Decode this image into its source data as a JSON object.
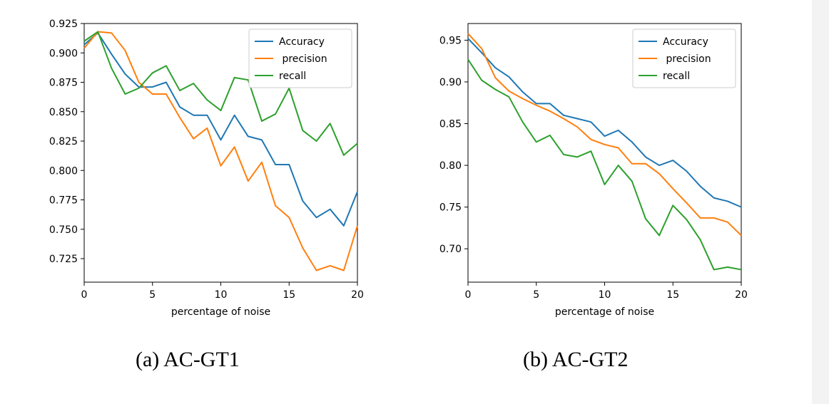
{
  "colors": {
    "accuracy": "#1f77b4",
    "precision": "#ff7f0e",
    "recall": "#2ca02c"
  },
  "chart_data": [
    {
      "type": "line",
      "caption": "(a) AC-GT1",
      "xlabel": "percentage of noise",
      "ylabel": "",
      "xlim": [
        0,
        20
      ],
      "ylim": [
        0.705,
        0.925
      ],
      "xticks": [
        0,
        5,
        10,
        15,
        20
      ],
      "yticks": [
        0.725,
        0.75,
        0.775,
        0.8,
        0.825,
        0.85,
        0.875,
        0.9,
        0.925
      ],
      "ytick_labels": [
        "0.725",
        "0.750",
        "0.775",
        "0.800",
        "0.825",
        "0.850",
        "0.875",
        "0.900",
        "0.925"
      ],
      "legend_position": "top-right",
      "x": [
        0,
        1,
        2,
        3,
        4,
        5,
        6,
        7,
        8,
        9,
        10,
        11,
        12,
        13,
        14,
        15,
        16,
        17,
        18,
        19,
        20
      ],
      "series": [
        {
          "name": "Accuracy",
          "color": "#1f77b4",
          "values": [
            0.907,
            0.917,
            0.899,
            0.882,
            0.871,
            0.871,
            0.875,
            0.854,
            0.847,
            0.847,
            0.826,
            0.847,
            0.829,
            0.826,
            0.805,
            0.805,
            0.774,
            0.76,
            0.767,
            0.753,
            0.782
          ]
        },
        {
          "name": " precision",
          "color": "#ff7f0e",
          "values": [
            0.904,
            0.918,
            0.917,
            0.902,
            0.875,
            0.865,
            0.865,
            0.845,
            0.827,
            0.836,
            0.804,
            0.82,
            0.791,
            0.807,
            0.77,
            0.76,
            0.734,
            0.715,
            0.719,
            0.715,
            0.753
          ]
        },
        {
          "name": "recall",
          "color": "#2ca02c",
          "values": [
            0.91,
            0.918,
            0.887,
            0.865,
            0.87,
            0.883,
            0.889,
            0.868,
            0.874,
            0.86,
            0.851,
            0.879,
            0.877,
            0.842,
            0.848,
            0.87,
            0.834,
            0.825,
            0.84,
            0.813,
            0.823
          ]
        }
      ]
    },
    {
      "type": "line",
      "caption": "(b) AC-GT2",
      "xlabel": "percentage of noise",
      "ylabel": "",
      "xlim": [
        0,
        20
      ],
      "ylim": [
        0.66,
        0.97
      ],
      "xticks": [
        0,
        5,
        10,
        15,
        20
      ],
      "yticks": [
        0.7,
        0.75,
        0.8,
        0.85,
        0.9,
        0.95
      ],
      "ytick_labels": [
        "0.70",
        "0.75",
        "0.80",
        "0.85",
        "0.90",
        "0.95"
      ],
      "legend_position": "top-right",
      "x": [
        0,
        1,
        2,
        3,
        4,
        5,
        6,
        7,
        8,
        9,
        10,
        11,
        12,
        13,
        14,
        15,
        16,
        17,
        18,
        19,
        20
      ],
      "series": [
        {
          "name": "Accuracy",
          "color": "#1f77b4",
          "values": [
            0.952,
            0.935,
            0.917,
            0.906,
            0.888,
            0.874,
            0.874,
            0.86,
            0.856,
            0.852,
            0.835,
            0.842,
            0.828,
            0.81,
            0.8,
            0.806,
            0.793,
            0.775,
            0.761,
            0.757,
            0.75
          ]
        },
        {
          "name": " precision",
          "color": "#ff7f0e",
          "values": [
            0.958,
            0.94,
            0.905,
            0.889,
            0.88,
            0.872,
            0.865,
            0.856,
            0.846,
            0.831,
            0.825,
            0.821,
            0.802,
            0.802,
            0.79,
            0.772,
            0.755,
            0.737,
            0.737,
            0.732,
            0.716
          ]
        },
        {
          "name": "recall",
          "color": "#2ca02c",
          "values": [
            0.927,
            0.902,
            0.891,
            0.882,
            0.852,
            0.828,
            0.836,
            0.813,
            0.81,
            0.817,
            0.777,
            0.8,
            0.781,
            0.736,
            0.716,
            0.752,
            0.735,
            0.711,
            0.675,
            0.678,
            0.675
          ]
        }
      ]
    }
  ]
}
